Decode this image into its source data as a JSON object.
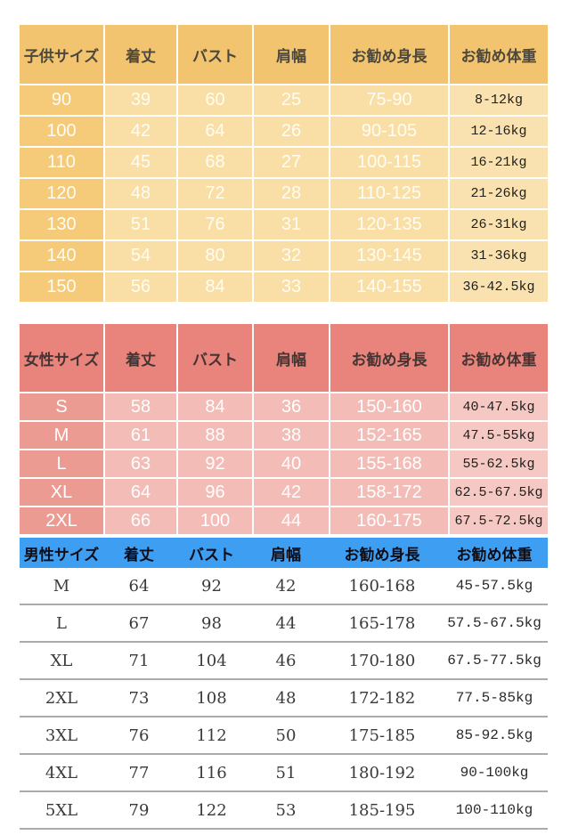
{
  "page": {
    "background": "#ffffff"
  },
  "colors": {
    "kids_header": "#F3C46F",
    "kids_first_col": "#F5CA78",
    "kids_body": "#F9DEA6",
    "kids_last_col": "#FAE2B0",
    "women_header": "#E8847C",
    "women_first_col": "#EC9B93",
    "women_body": "#F3BCB7",
    "women_last_col": "#F5C8C3",
    "men_header": "#3E9EF1",
    "men_divider": "#ABABAB",
    "gridline": "#FFFFFF"
  },
  "tables": [
    {
      "id": "kids",
      "columns": [
        "子供サイズ",
        "着丈",
        "バスト",
        "肩幅",
        "お勧め身長",
        "お勧め体重"
      ],
      "rows": [
        [
          "90",
          "39",
          "60",
          "25",
          "75-90",
          "8-12kg"
        ],
        [
          "100",
          "42",
          "64",
          "26",
          "90-105",
          "12-16kg"
        ],
        [
          "110",
          "45",
          "68",
          "27",
          "100-115",
          "16-21kg"
        ],
        [
          "120",
          "48",
          "72",
          "28",
          "110-125",
          "21-26kg"
        ],
        [
          "130",
          "51",
          "76",
          "31",
          "120-135",
          "26-31kg"
        ],
        [
          "140",
          "54",
          "80",
          "32",
          "130-145",
          "31-36kg"
        ],
        [
          "150",
          "56",
          "84",
          "33",
          "140-155",
          "36-42.5kg"
        ]
      ]
    },
    {
      "id": "women",
      "columns": [
        "女性サイズ",
        "着丈",
        "バスト",
        "肩幅",
        "お勧め身長",
        "お勧め体重"
      ],
      "rows": [
        [
          "S",
          "58",
          "84",
          "36",
          "150-160",
          "40-47.5kg"
        ],
        [
          "M",
          "61",
          "88",
          "38",
          "152-165",
          "47.5-55kg"
        ],
        [
          "L",
          "63",
          "92",
          "40",
          "155-168",
          "55-62.5kg"
        ],
        [
          "XL",
          "64",
          "96",
          "42",
          "158-172",
          "62.5-67.5kg"
        ],
        [
          "2XL",
          "66",
          "100",
          "44",
          "160-175",
          "67.5-72.5kg"
        ]
      ]
    },
    {
      "id": "men",
      "columns": [
        "男性サイズ",
        "着丈",
        "バスト",
        "肩幅",
        "お勧め身長",
        "お勧め体重"
      ],
      "rows": [
        [
          "M",
          "64",
          "92",
          "42",
          "160-168",
          "45-57.5kg"
        ],
        [
          "L",
          "67",
          "98",
          "44",
          "165-178",
          "57.5-67.5kg"
        ],
        [
          "XL",
          "71",
          "104",
          "46",
          "170-180",
          "67.5-77.5kg"
        ],
        [
          "2XL",
          "73",
          "108",
          "48",
          "172-182",
          "77.5-85kg"
        ],
        [
          "3XL",
          "76",
          "112",
          "50",
          "175-185",
          "85-92.5kg"
        ],
        [
          "4XL",
          "77",
          "116",
          "51",
          "180-192",
          "90-100kg"
        ],
        [
          "5XL",
          "79",
          "122",
          "53",
          "185-195",
          "100-110kg"
        ]
      ]
    }
  ]
}
